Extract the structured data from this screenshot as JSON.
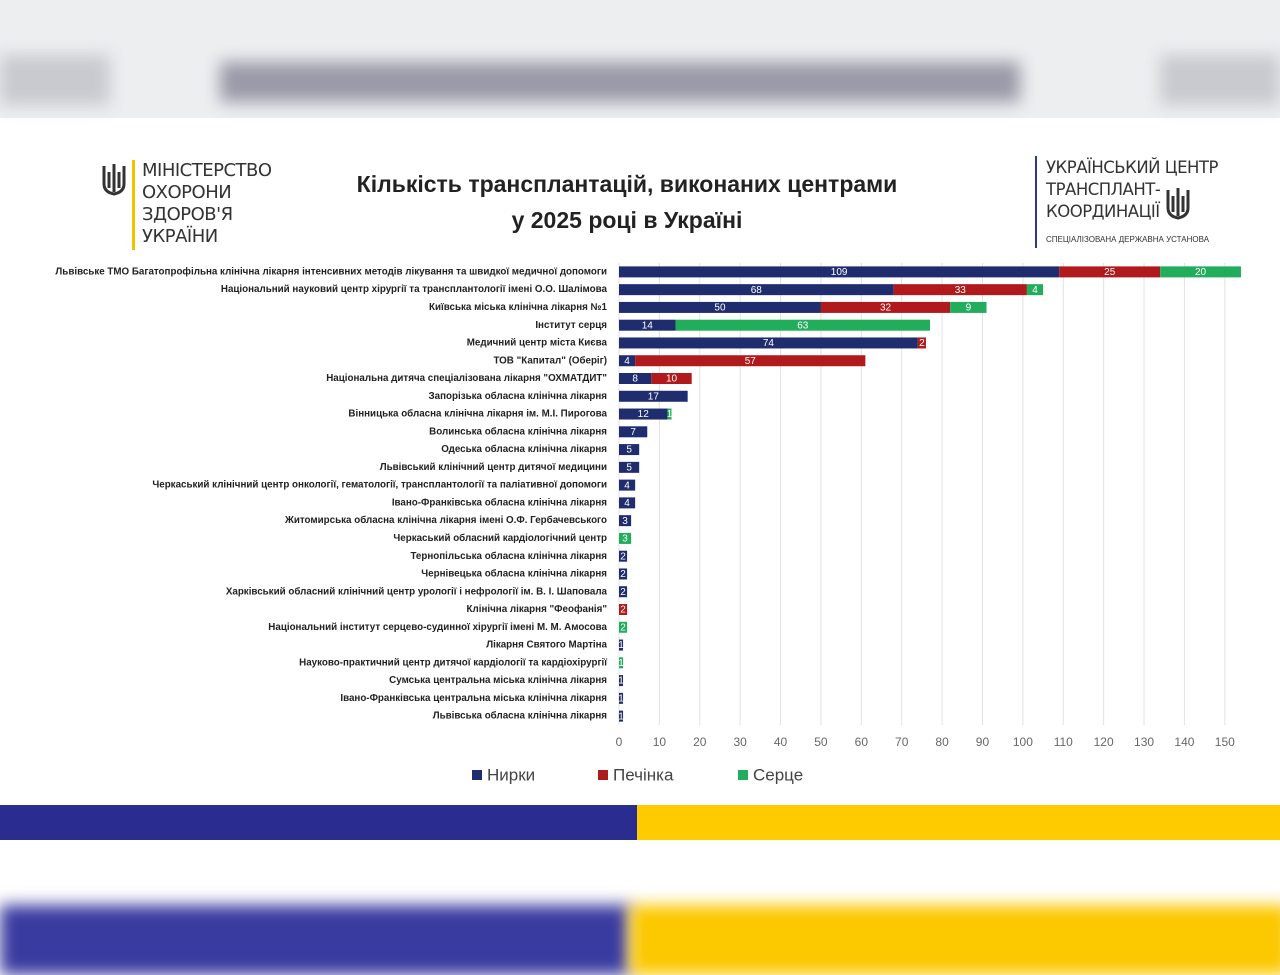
{
  "header": {
    "ministry": [
      "МІНІСТЕРСТВО",
      "ОХОРОНИ",
      "ЗДОРОВ'Я",
      "УКРАЇНИ"
    ],
    "center": [
      "УКРАЇНСЬКИЙ ЦЕНТР",
      "ТРАНСПЛАНТ-",
      "КООРДИНАЦІЇ"
    ],
    "center_note": "СПЕЦІАЛІЗОВАНА ДЕРЖАВНА УСТАНОВА"
  },
  "chart_data": {
    "type": "stacked-barh",
    "title": [
      "Кількість трансплантацій, виконаних центрами",
      "у 2025 році в Україні"
    ],
    "categories": [
      "Львівське ТМО Багатопрофільна клінічна лікарня інтенсивних методів лікування та швидкої медичної допомоги",
      "Національний науковий центр хірургії та трансплантології імені О.О. Шалімова",
      "Київська міська клінічна лікарня №1",
      "Інститут серця",
      "Медичний центр міста Києва",
      "ТОВ \"Капитал\" (Оберіг)",
      "Національна дитяча спеціалізована лікарня \"ОХМАТДИТ\"",
      "Запорізька обласна клінічна лікарня",
      "Вінницька обласна клінічна лікарня ім. М.І. Пирогова",
      "Волинська обласна клінічна лікарня",
      "Одеська обласна клінічна лікарня",
      "Львівський клінічний центр дитячої медицини",
      "Черкаський клінічний центр онкології, гематології, трансплантології та паліативної допомоги",
      "Івано-Франківська обласна клінічна лікарня",
      "Житомирська обласна клінічна лікарня імені О.Ф. Гербачевського",
      "Черкаський обласний кардіологічний центр",
      "Тернопільська обласна клінічна лікарня",
      "Чернівецька обласна клінічна лікарня",
      "Харківський обласний клінічний центр урології і нефрології ім. В. І. Шаповала",
      "Клінічна лікарня \"Феофанія\"",
      "Національний інститут серцево-судинної хірургії імені М. М. Амосова",
      "Лікарня Святого Мартіна",
      "Науково-практичний центр дитячої кардіології та кардіохірургії",
      "Сумська центральна міська клінічна лікарня",
      "Івано-Франківська центральна міська клінічна лікарня",
      "Львівська обласна клінічна лікарня"
    ],
    "series": [
      {
        "name": "Нирки",
        "color": "#1f2d6e",
        "values": [
          109,
          68,
          50,
          14,
          74,
          4,
          8,
          17,
          12,
          7,
          5,
          5,
          4,
          4,
          3,
          null,
          2,
          2,
          2,
          null,
          null,
          1,
          null,
          1,
          1,
          1
        ]
      },
      {
        "name": "Печінка",
        "color": "#b01a1c",
        "values": [
          25,
          33,
          32,
          null,
          2,
          57,
          10,
          null,
          null,
          null,
          null,
          null,
          null,
          null,
          null,
          null,
          null,
          null,
          null,
          2,
          null,
          null,
          null,
          null,
          null,
          null
        ]
      },
      {
        "name": "Серце",
        "color": "#22ad5c",
        "values": [
          20,
          4,
          9,
          63,
          null,
          null,
          null,
          null,
          1,
          null,
          null,
          null,
          null,
          null,
          null,
          3,
          null,
          null,
          null,
          null,
          2,
          null,
          1,
          null,
          null,
          null
        ]
      }
    ],
    "xlim": [
      0,
      155
    ],
    "xticks": [
      0,
      10,
      20,
      30,
      40,
      50,
      60,
      70,
      80,
      90,
      100,
      110,
      120,
      130,
      140,
      150
    ],
    "grid": true
  }
}
